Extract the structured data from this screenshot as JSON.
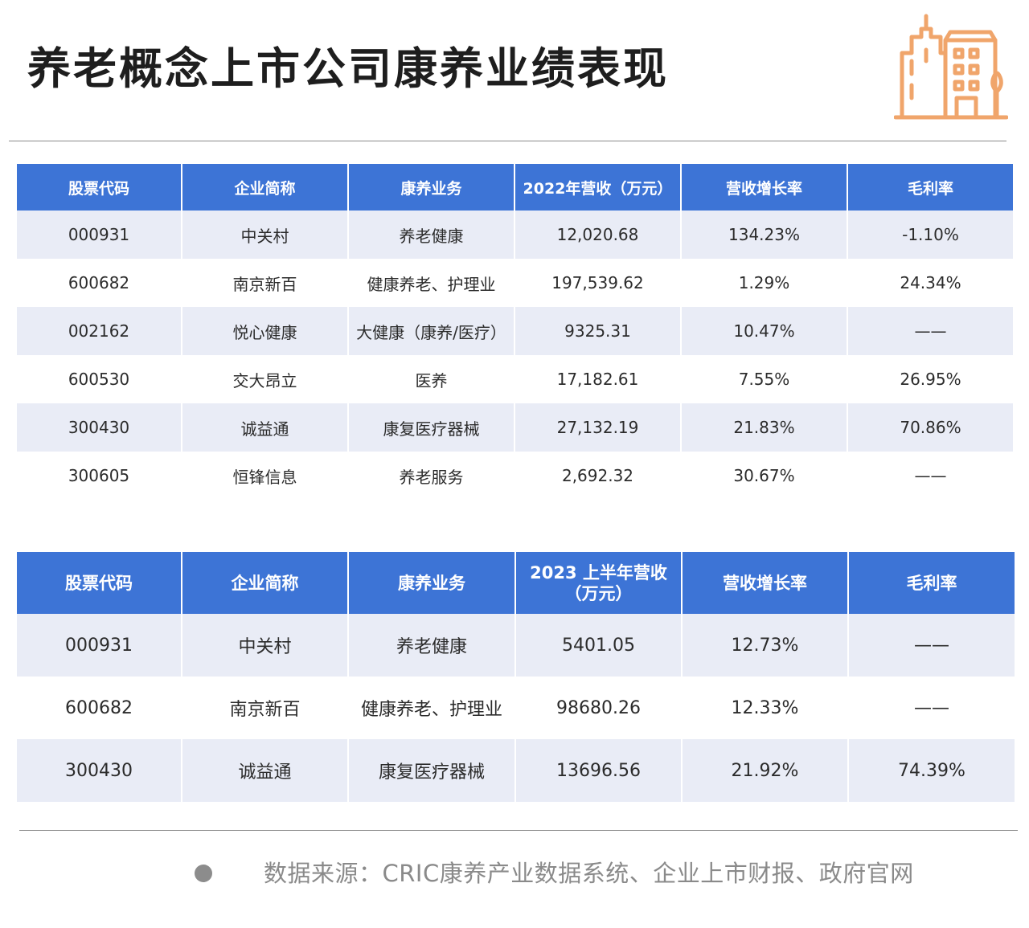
{
  "title": "养老概念上市公司康养业绩表现",
  "colors": {
    "header_bg": "#3d74d6",
    "row_alt": "#e9ecf6",
    "logo": "#f0a56b"
  },
  "logo_icon": "city-buildings-icon",
  "table1": {
    "headers": [
      "股票代码",
      "企业简称",
      "康养业务",
      "2022年营收（万元）",
      "营收增长率",
      "毛利率"
    ],
    "rows": [
      [
        "000931",
        "中关村",
        "养老健康",
        "12,020.68",
        "134.23%",
        "-1.10%"
      ],
      [
        "600682",
        "南京新百",
        "健康养老、护理业",
        "197,539.62",
        "1.29%",
        "24.34%"
      ],
      [
        "002162",
        "悦心健康",
        "大健康（康养/医疗）",
        "9325.31",
        "10.47%",
        "——"
      ],
      [
        "600530",
        "交大昂立",
        "医养",
        "17,182.61",
        "7.55%",
        "26.95%"
      ],
      [
        "300430",
        "诚益通",
        "康复医疗器械",
        "27,132.19",
        "21.83%",
        "70.86%"
      ],
      [
        "300605",
        "恒锋信息",
        "养老服务",
        "2,692.32",
        "30.67%",
        "——"
      ]
    ]
  },
  "table2": {
    "headers": [
      "股票代码",
      "企业简称",
      "康养业务",
      "2023 上半年营收（万元）",
      "营收增长率",
      "毛利率"
    ],
    "rows": [
      [
        "000931",
        "中关村",
        "养老健康",
        "5401.05",
        "12.73%",
        "——"
      ],
      [
        "600682",
        "南京新百",
        "健康养老、护理业",
        "98680.26",
        "12.33%",
        "——"
      ],
      [
        "300430",
        "诚益通",
        "康复医疗器械",
        "13696.56",
        "21.92%",
        "74.39%"
      ]
    ]
  },
  "source": "数据来源：CRIC康养产业数据系统、企业上市财报、政府官网"
}
